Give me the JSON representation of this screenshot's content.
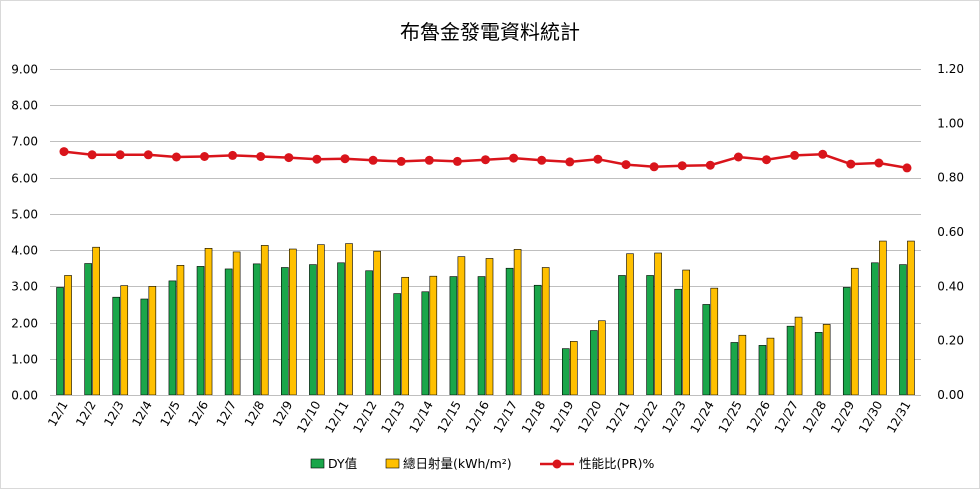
{
  "colors": {
    "dy": "#1aa64a",
    "irradiance": "#ffc000",
    "pr": "#d9141b",
    "bar_stroke": "#000000",
    "grid": "#bfbfbf"
  },
  "chart_data": {
    "type": "bar",
    "title": "布魯金發電資料統計",
    "xlabel": "",
    "ylabel": "",
    "y2label": "",
    "ylim": [
      0,
      9
    ],
    "y2lim": [
      0,
      1.2
    ],
    "y_ticks": [
      "0.00",
      "1.00",
      "2.00",
      "3.00",
      "4.00",
      "5.00",
      "6.00",
      "7.00",
      "8.00",
      "9.00"
    ],
    "y2_ticks": [
      "0.00",
      "0.20",
      "0.40",
      "0.60",
      "0.80",
      "1.00",
      "1.20"
    ],
    "grid": true,
    "legend_position": "bottom",
    "categories": [
      "12/1",
      "12/2",
      "12/3",
      "12/4",
      "12/5",
      "12/6",
      "12/7",
      "12/8",
      "12/9",
      "12/10",
      "12/11",
      "12/12",
      "12/13",
      "12/14",
      "12/15",
      "12/16",
      "12/17",
      "12/18",
      "12/19",
      "12/20",
      "12/21",
      "12/22",
      "12/23",
      "12/24",
      "12/25",
      "12/26",
      "12/27",
      "12/28",
      "12/29",
      "12/30",
      "12/31"
    ],
    "series": [
      {
        "name": "DY值",
        "type": "bar",
        "axis": "left",
        "values": [
          2.97,
          3.63,
          2.7,
          2.65,
          3.15,
          3.55,
          3.48,
          3.62,
          3.52,
          3.6,
          3.65,
          3.43,
          2.8,
          2.85,
          3.27,
          3.27,
          3.5,
          3.03,
          1.28,
          1.78,
          3.3,
          3.3,
          2.92,
          2.5,
          1.45,
          1.37,
          1.9,
          1.73,
          2.97,
          3.65,
          3.6
        ]
      },
      {
        "name": "總日射量(kWh/m²)",
        "type": "bar",
        "axis": "left",
        "values": [
          3.3,
          4.08,
          3.02,
          3.0,
          3.58,
          4.05,
          3.95,
          4.13,
          4.03,
          4.15,
          4.18,
          3.97,
          3.25,
          3.28,
          3.82,
          3.77,
          4.02,
          3.52,
          1.48,
          2.05,
          3.9,
          3.92,
          3.45,
          2.95,
          1.65,
          1.57,
          2.15,
          1.95,
          3.5,
          4.25,
          4.25
        ]
      },
      {
        "name": "性能比(PR)%",
        "type": "line",
        "axis": "right",
        "values": [
          0.896,
          0.884,
          0.884,
          0.884,
          0.876,
          0.878,
          0.882,
          0.878,
          0.874,
          0.868,
          0.87,
          0.864,
          0.86,
          0.864,
          0.86,
          0.866,
          0.872,
          0.864,
          0.858,
          0.868,
          0.848,
          0.84,
          0.844,
          0.846,
          0.876,
          0.866,
          0.882,
          0.886,
          0.85,
          0.854,
          0.836
        ]
      }
    ]
  }
}
